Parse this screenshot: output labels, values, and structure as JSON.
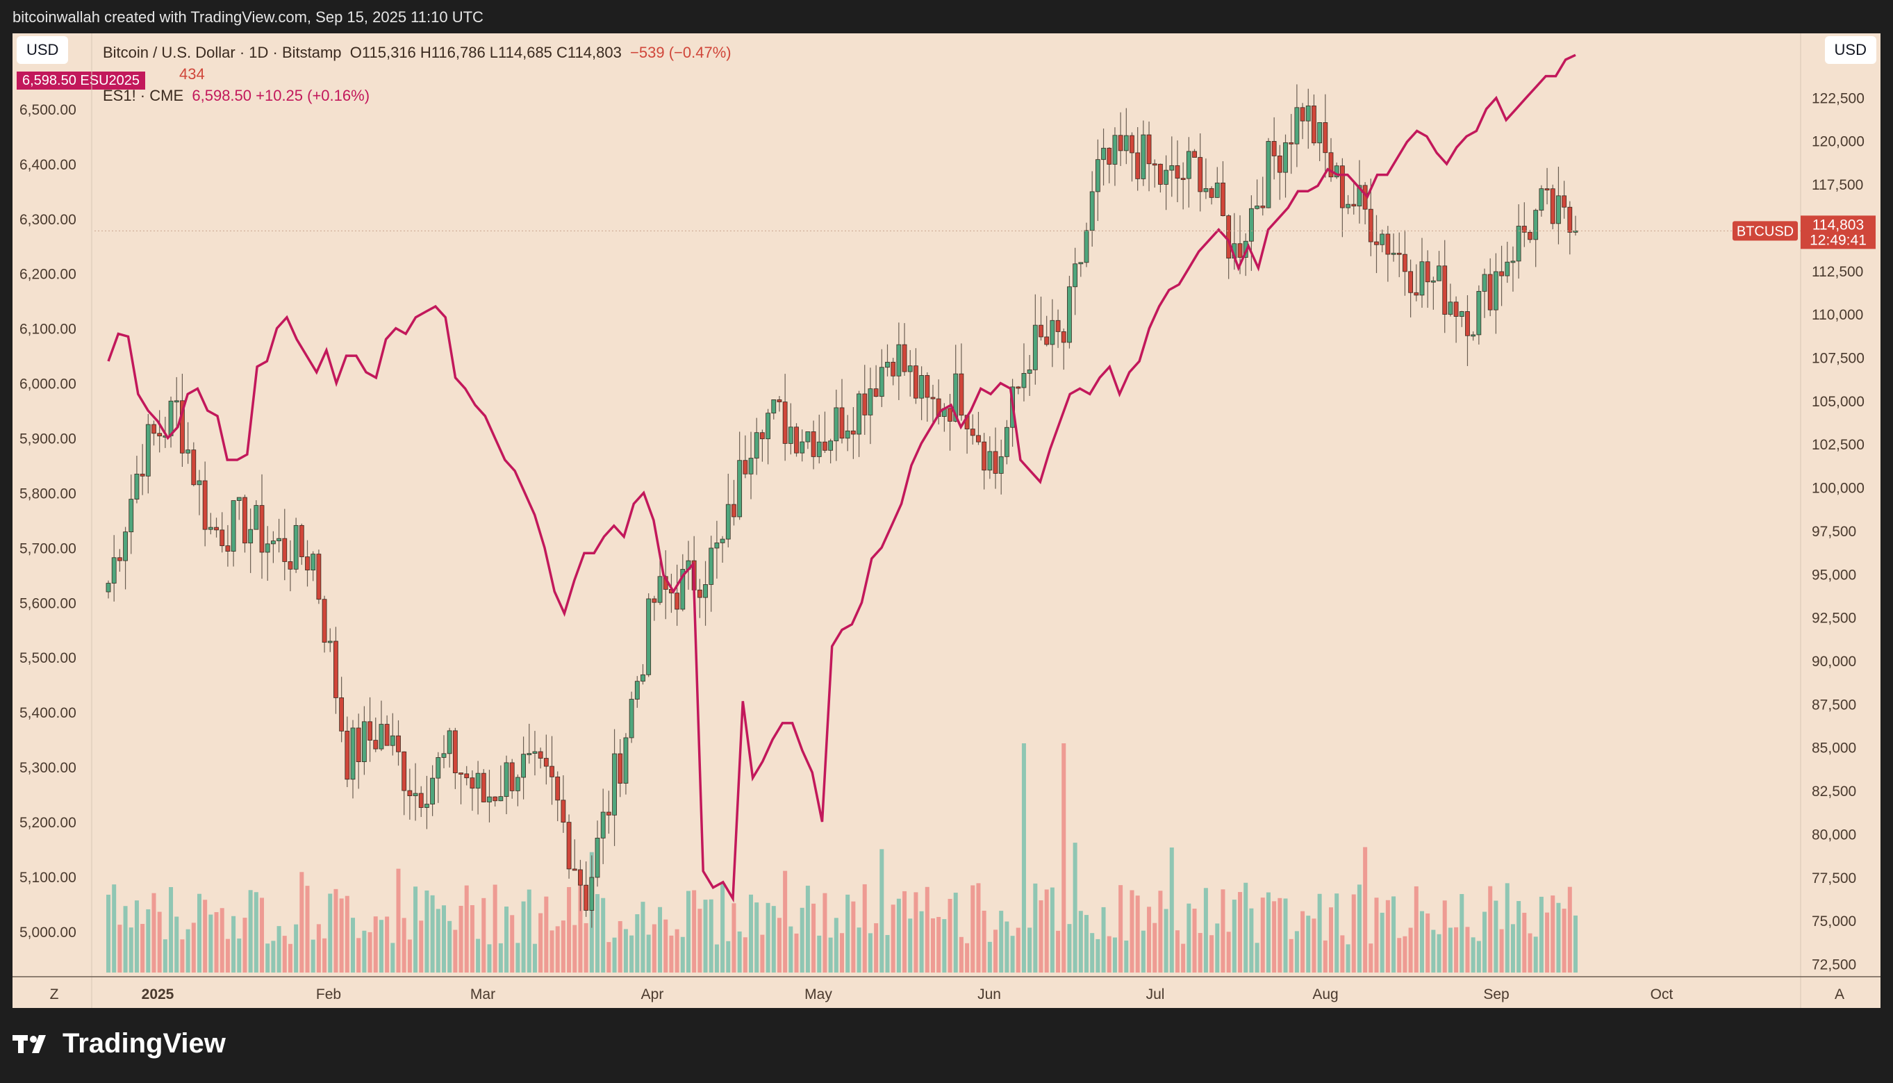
{
  "header": {
    "attribution": "bitcoinwallah created with TradingView.com, Sep 15, 2025 11:10 UTC"
  },
  "buttons": {
    "left_currency": "USD",
    "right_currency": "USD",
    "zoom_left": "Z",
    "auto_right": "A"
  },
  "legend": {
    "symbol": "Bitcoin / U.S. Dollar · 1D · Bitstamp",
    "ohlc": "O115,316  H116,786  L114,685  C114,803",
    "change": "−539 (−0.47%)",
    "volume_line": "434",
    "es_symbol": "ES1! · CME",
    "es_values": "6,598.50  +10.25 (+0.16%)",
    "es_badge": "6,598.50  ESU2025"
  },
  "price_tag": {
    "symbol": "BTCUSD",
    "price": "114,803",
    "countdown": "12:49:41"
  },
  "brand": {
    "name": "TradingView"
  },
  "colors": {
    "background": "#f4e1cf",
    "up": "#4fa67d",
    "down": "#d0463a",
    "vol_up": "#8fc6b3",
    "vol_down": "#ee9b93",
    "es_line": "#c2185b"
  },
  "chart_data": {
    "type": "candlestick",
    "left_axis": {
      "ticks": [
        "6,500.00",
        "6,400.00",
        "6,300.00",
        "6,200.00",
        "6,100.00",
        "6,000.00",
        "5,900.00",
        "5,800.00",
        "5,700.00",
        "5,600.00",
        "5,500.00",
        "5,400.00",
        "5,300.00",
        "5,200.00",
        "5,100.00",
        "5,000.00"
      ],
      "range": [
        4925,
        6600
      ]
    },
    "right_axis": {
      "ticks": [
        "122,500",
        "120,000",
        "117,500",
        "115,000",
        "112,500",
        "110,000",
        "107,500",
        "105,000",
        "102,500",
        "100,000",
        "97,500",
        "95,000",
        "92,500",
        "90,000",
        "87,500",
        "85,000",
        "82,500",
        "80,000",
        "77,500",
        "75,000",
        "72,500"
      ],
      "range": [
        72000,
        125000
      ]
    },
    "x_labels": [
      "2025",
      "Feb",
      "Mar",
      "Apr",
      "May",
      "Jun",
      "Jul",
      "Aug",
      "Sep",
      "Oct"
    ],
    "btc_weekly_closes": [
      94500,
      102000,
      104500,
      97500,
      98000,
      96500,
      96000,
      84500,
      86000,
      82500,
      84500,
      82000,
      84000,
      82500,
      76500,
      84500,
      93500,
      94500,
      96500,
      104500,
      103500,
      103000,
      105000,
      108000,
      104500,
      105500,
      101000,
      108000,
      108500,
      118000,
      119500,
      117500,
      118500,
      113500,
      118500,
      122000,
      117500,
      115500,
      113000,
      111500,
      110000,
      113500,
      116000,
      114803
    ],
    "es_daily": [
      6040,
      6090,
      6085,
      5980,
      5950,
      5930,
      5900,
      5920,
      5980,
      5990,
      5950,
      5940,
      5860,
      5860,
      5870,
      6030,
      6040,
      6100,
      6120,
      6080,
      6050,
      6020,
      6060,
      6000,
      6050,
      6050,
      6020,
      6010,
      6080,
      6100,
      6090,
      6120,
      6130,
      6140,
      6120,
      6010,
      5990,
      5960,
      5940,
      5900,
      5860,
      5840,
      5800,
      5760,
      5700,
      5620,
      5580,
      5640,
      5690,
      5690,
      5720,
      5740,
      5720,
      5780,
      5800,
      5750,
      5650,
      5620,
      5650,
      5670,
      5110,
      5080,
      5090,
      5060,
      5420,
      5280,
      5310,
      5350,
      5380,
      5380,
      5330,
      5290,
      5200,
      5520,
      5550,
      5560,
      5600,
      5680,
      5700,
      5740,
      5780,
      5850,
      5890,
      5920,
      5950,
      5960,
      5920,
      5950,
      5990,
      5980,
      6000,
      5990,
      5860,
      5840,
      5820,
      5880,
      5930,
      5980,
      5990,
      5980,
      6010,
      6030,
      5980,
      6020,
      6040,
      6100,
      6140,
      6170,
      6180,
      6210,
      6240,
      6260,
      6280,
      6260,
      6210,
      6250,
      6210,
      6280,
      6300,
      6320,
      6350,
      6350,
      6360,
      6390,
      6380,
      6380,
      6360,
      6340,
      6380,
      6380,
      6410,
      6440,
      6460,
      6450,
      6420,
      6400,
      6430,
      6450,
      6460,
      6500,
      6520,
      6480,
      6500,
      6520,
      6540,
      6560,
      6560,
      6590,
      6598.5
    ]
  }
}
